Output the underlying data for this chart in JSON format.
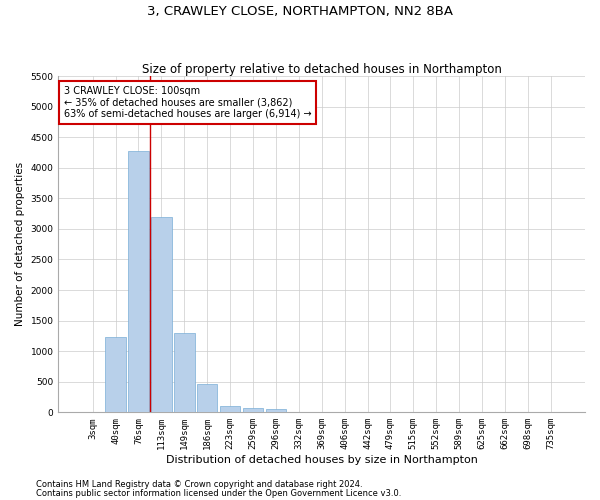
{
  "title": "3, CRAWLEY CLOSE, NORTHAMPTON, NN2 8BA",
  "subtitle": "Size of property relative to detached houses in Northampton",
  "xlabel": "Distribution of detached houses by size in Northampton",
  "ylabel": "Number of detached properties",
  "footer_line1": "Contains HM Land Registry data © Crown copyright and database right 2024.",
  "footer_line2": "Contains public sector information licensed under the Open Government Licence v3.0.",
  "categories": [
    "3sqm",
    "40sqm",
    "76sqm",
    "113sqm",
    "149sqm",
    "186sqm",
    "223sqm",
    "259sqm",
    "296sqm",
    "332sqm",
    "369sqm",
    "406sqm",
    "442sqm",
    "479sqm",
    "515sqm",
    "552sqm",
    "589sqm",
    "625sqm",
    "662sqm",
    "698sqm",
    "735sqm"
  ],
  "values": [
    0,
    1230,
    4280,
    3200,
    1300,
    460,
    110,
    70,
    50,
    0,
    0,
    0,
    0,
    0,
    0,
    0,
    0,
    0,
    0,
    0,
    0
  ],
  "bar_color": "#b8d0ea",
  "bar_edge_color": "#7aaed6",
  "annotation_text": "3 CRAWLEY CLOSE: 100sqm\n← 35% of detached houses are smaller (3,862)\n63% of semi-detached houses are larger (6,914) →",
  "annotation_box_edge_color": "#cc0000",
  "vline_x_pos": 2.5,
  "vline_color": "#cc0000",
  "ylim": [
    0,
    5500
  ],
  "yticks": [
    0,
    500,
    1000,
    1500,
    2000,
    2500,
    3000,
    3500,
    4000,
    4500,
    5000,
    5500
  ],
  "grid_color": "#cccccc",
  "background_color": "#ffffff",
  "title_fontsize": 9.5,
  "subtitle_fontsize": 8.5,
  "xlabel_fontsize": 8,
  "ylabel_fontsize": 7.5,
  "tick_fontsize": 6.5,
  "footer_fontsize": 6,
  "annot_fontsize": 7
}
